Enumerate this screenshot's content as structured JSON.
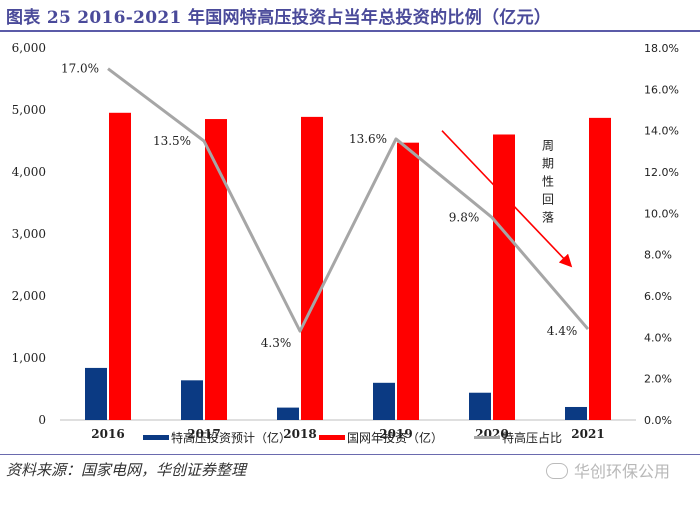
{
  "header": {
    "title": "图表 25   2016-2021 年国网特高压投资占当年总投资的比例（亿元）"
  },
  "footer": {
    "source": "资料来源：国家电网，华创证券整理",
    "watermark": "华创环保公用"
  },
  "colors": {
    "uhv_bar": "#0b3a83",
    "total_bar": "#ff0000",
    "ratio_line": "#a6a6a6",
    "arrow": "#ff0000"
  },
  "chart_data": {
    "type": "bar",
    "title": "2016-2021 年国网特高压投资占当年总投资的比例（亿元）",
    "categories": [
      "2016",
      "2017",
      "2018",
      "2019",
      "2020",
      "2021"
    ],
    "series": [
      {
        "name": "特高压投资预计（亿）",
        "type": "bar",
        "axis": "left",
        "values": [
          840,
          640,
          200,
          600,
          440,
          210
        ]
      },
      {
        "name": "国网年投资（亿）",
        "type": "bar",
        "axis": "left",
        "values": [
          4955,
          4854,
          4889,
          4473,
          4605,
          4873
        ]
      },
      {
        "name": "特高压占比",
        "type": "line",
        "axis": "right",
        "values": [
          17.0,
          13.5,
          4.3,
          13.6,
          9.8,
          4.4
        ],
        "labels": [
          "17.0%",
          "13.5%",
          "4.3%",
          "13.6%",
          "9.8%",
          "4.4%"
        ]
      }
    ],
    "left_axis": {
      "ylim": [
        0,
        6000
      ],
      "ticks": [
        0,
        1000,
        2000,
        3000,
        4000,
        5000,
        6000
      ],
      "tick_labels": [
        "0",
        "1,000",
        "2,000",
        "3,000",
        "4,000",
        "5,000",
        "6,000"
      ]
    },
    "right_axis": {
      "ylim": [
        0,
        18
      ],
      "ticks": [
        0,
        2,
        4,
        6,
        8,
        10,
        12,
        14,
        16,
        18
      ],
      "tick_labels": [
        "0.0%",
        "2.0%",
        "4.0%",
        "6.0%",
        "8.0%",
        "10.0%",
        "12.0%",
        "14.0%",
        "16.0%",
        "18.0%"
      ]
    },
    "annotation": {
      "text": "周期性回落",
      "from_category": "2019",
      "to_category": "2021"
    },
    "legend": {
      "position": "bottom"
    },
    "grid": false
  }
}
